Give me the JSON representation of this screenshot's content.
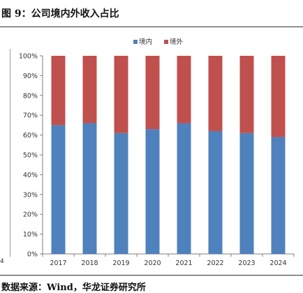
{
  "figure_title": "图 9：公司境内外收入占比",
  "source_note": "数据来源：Wind，华龙证券研究所",
  "left_panel_fragment": "4",
  "chart_data": {
    "type": "bar",
    "stacked": true,
    "percent": true,
    "categories": [
      "2017",
      "2018",
      "2019",
      "2020",
      "2021",
      "2022",
      "2023",
      "2024"
    ],
    "series": [
      {
        "name": "境内",
        "color": "#4f81bd",
        "values": [
          65,
          66,
          61,
          63,
          66,
          62,
          61,
          59
        ]
      },
      {
        "name": "境外",
        "color": "#c0504d",
        "values": [
          35,
          34,
          39,
          37,
          34,
          38,
          39,
          41
        ]
      }
    ],
    "ylim": [
      0,
      100
    ],
    "yticks": [
      "0%",
      "10%",
      "20%",
      "30%",
      "40%",
      "50%",
      "60%",
      "70%",
      "80%",
      "90%",
      "100%"
    ],
    "legend_position": "top",
    "grid": false,
    "title": "",
    "xlabel": "",
    "ylabel": ""
  }
}
